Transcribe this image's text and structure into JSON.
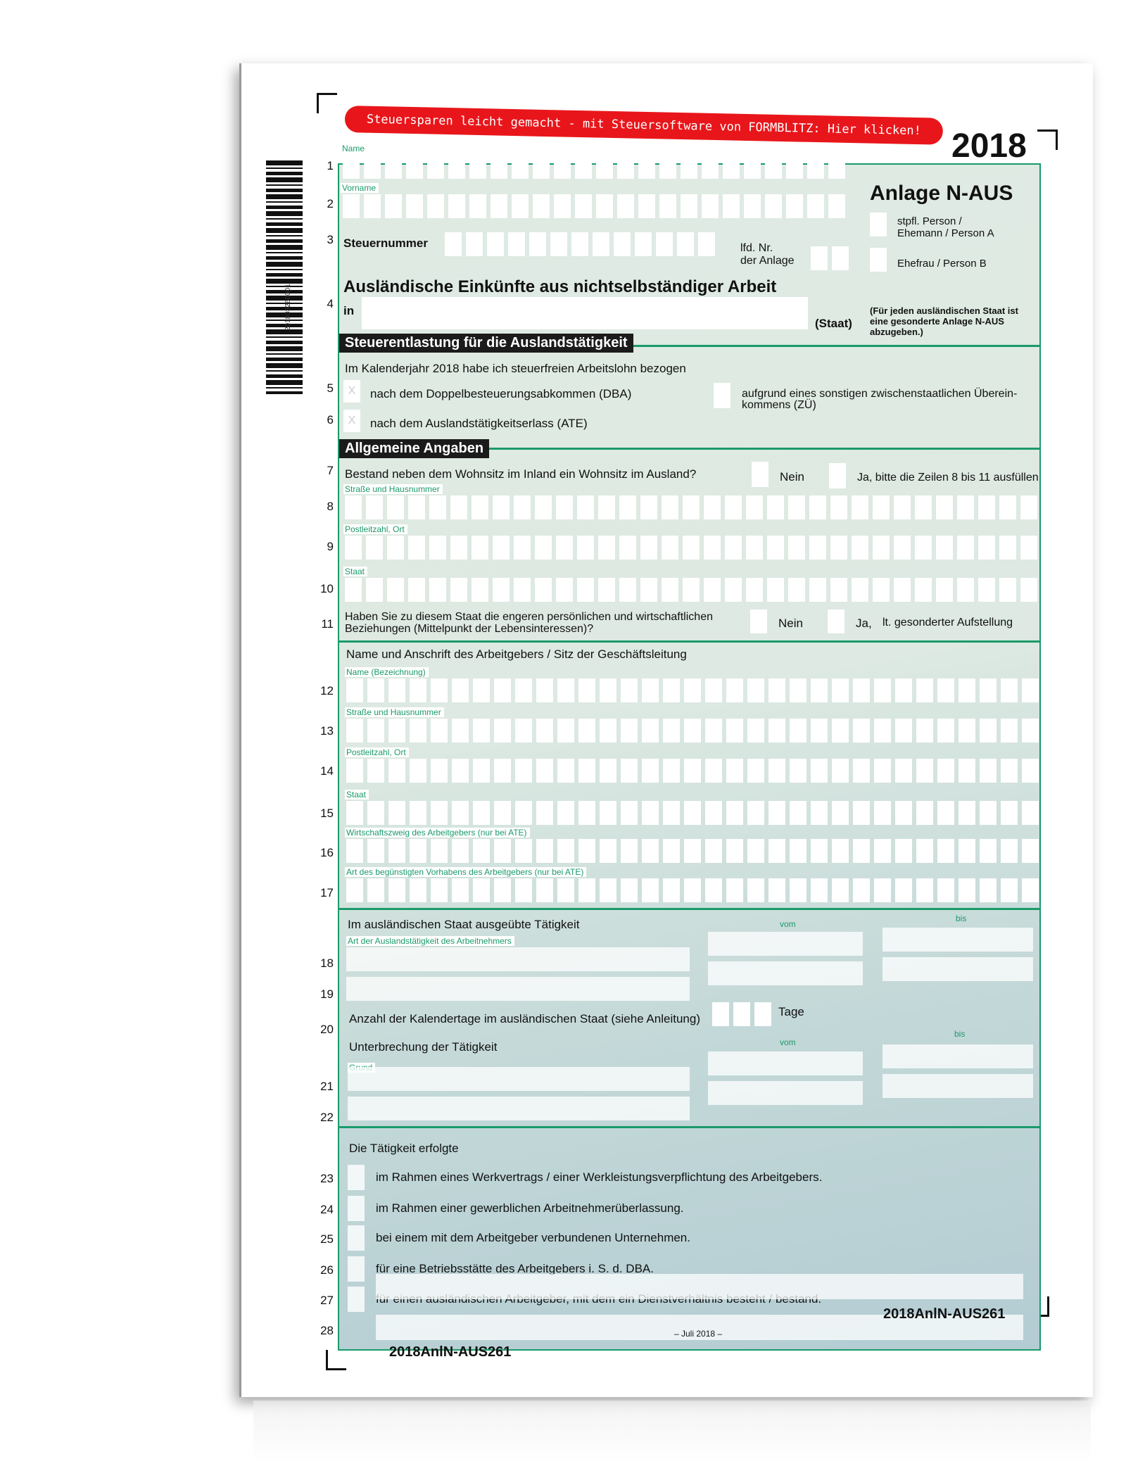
{
  "banner": "Steuersparen leicht gemacht - mit Steuersoftware von FORMBLITZ: Hier klicken!",
  "year": "2018",
  "barcode_text": "201803260001",
  "form_title": "Anlage N-AUS",
  "person_a": "stpfl. Person / Ehemann / Person A",
  "person_b": "Ehefrau / Person B",
  "rows": [
    "1",
    "2",
    "3",
    "4",
    "5",
    "6",
    "7",
    "8",
    "9",
    "10",
    "11",
    "12",
    "13",
    "14",
    "15",
    "16",
    "17",
    "18",
    "19",
    "20",
    "21",
    "22",
    "23",
    "24",
    "25",
    "26",
    "27",
    "28"
  ],
  "labels": {
    "name": "Name",
    "vorname": "Vorname",
    "steuernummer": "Steuernummer",
    "lfd_nr": "lfd. Nr.",
    "der_anlage": "der Anlage",
    "heading": "Ausländische Einkünfte aus nichtselbständiger Arbeit",
    "in": "in",
    "staat_paren": "(Staat)",
    "note": "(Für jeden ausländischen Staat ist eine gesonderte Anlage N-AUS abzugeben.)"
  },
  "section1": {
    "title": "Steuerentlastung für die Auslandstätigkeit",
    "intro": "Im Kalenderjahr 2018 habe ich steuerfreien Arbeitslohn bezogen",
    "dba": "nach dem Doppelbesteuerungsabkommen (DBA)",
    "ate": "nach dem Auslandstätigkeitserlass (ATE)",
    "zue": "aufgrund eines sonstigen zwischenstaatlichen Überein- kommens (ZÜ)",
    "mark": "X"
  },
  "section2": {
    "title": "Allgemeine Angaben",
    "q7": "Bestand neben dem Wohnsitz im Inland ein Wohnsitz im Ausland?",
    "nein": "Nein",
    "ja7": "Ja, bitte die Zeilen 8 bis 11 ausfüllen",
    "strasse": "Straße und Hausnummer",
    "plz": "Postleitzahl, Ort",
    "staat": "Staat",
    "q11": "Haben Sie zu diesem Staat die engeren persönlichen und wirtschaftlichen Beziehungen (Mittelpunkt der Lebensinteressen)?",
    "ja11": "Ja,",
    "ja11b": "lt. gesonderter Aufstellung"
  },
  "section3": {
    "title": "Name und Anschrift des Arbeitgebers / Sitz der Geschäftsleitung",
    "name": "Name (Bezeichnung)",
    "strasse": "Straße und Hausnummer",
    "plz": "Postleitzahl, Ort",
    "staat": "Staat",
    "branch": "Wirtschaftszweig des Arbeitgebers (nur bei ATE)",
    "project": "Art des begünstigten Vorhabens des Arbeitgebers (nur bei ATE)"
  },
  "section4": {
    "title": "Im ausländischen Staat ausgeübte Tätigkeit",
    "art": "Art der Auslandstätigkeit des Arbeitnehmers",
    "vom": "vom",
    "bis": "bis",
    "days": "Anzahl der Kalendertage im ausländischen Staat (siehe Anleitung)",
    "tage": "Tage",
    "interrupt": "Unterbrechung der Tätigkeit",
    "grund": "Grund"
  },
  "section5": {
    "title": "Die Tätigkeit erfolgte",
    "options": [
      "im Rahmen eines Werkvertrags / einer Werkleistungsverpflichtung des Arbeitgebers.",
      "im Rahmen einer gewerblichen Arbeitnehmerüberlassung.",
      "bei einem mit dem Arbeitgeber verbundenen Unternehmen.",
      "für eine Betriebsstätte des Arbeitgebers i. S. d. DBA.",
      "für einen ausländischen Arbeitgeber, mit dem ein Dienstverhältnis besteht / bestand."
    ]
  },
  "footer": {
    "code_left": "2018AnlN-AUS261",
    "code_right": "2018AnlN-AUS261",
    "date": "– Juli 2018 –"
  },
  "colors": {
    "accent": "#1a9a6a",
    "banner": "#e8161b",
    "form_bg": "#dde9e2"
  }
}
